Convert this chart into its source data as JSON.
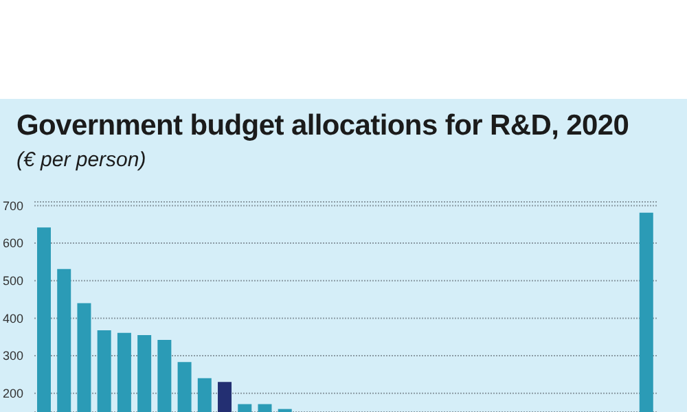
{
  "chart_data": {
    "type": "bar",
    "title": "Government budget allocations for R&D, 2020",
    "subtitle": "(€ per person)",
    "categories": [
      null,
      null,
      null,
      null,
      null,
      null,
      null,
      null,
      null,
      null,
      null,
      null,
      null,
      null,
      null,
      null,
      null,
      null,
      null,
      null,
      null,
      null,
      null,
      null,
      null,
      null,
      null,
      null,
      null,
      null,
      null
    ],
    "values": [
      642,
      531,
      440,
      368,
      361,
      355,
      342,
      283,
      240,
      230,
      171,
      171,
      158,
      null,
      null,
      null,
      null,
      null,
      null,
      null,
      null,
      null,
      null,
      null,
      null,
      null,
      null,
      null,
      null,
      null,
      681
    ],
    "colors": [
      "#2b9bb6",
      "#2b9bb6",
      "#2b9bb6",
      "#2b9bb6",
      "#2b9bb6",
      "#2b9bb6",
      "#2b9bb6",
      "#2b9bb6",
      "#2b9bb6",
      "#232f72",
      "#2b9bb6",
      "#2b9bb6",
      "#2b9bb6",
      "#2b9bb6",
      "#2b9bb6",
      "#2b9bb6",
      "#2b9bb6",
      "#2b9bb6",
      "#2b9bb6",
      "#2b9bb6",
      "#2b9bb6",
      "#2b9bb6",
      "#2b9bb6",
      "#2b9bb6",
      "#2b9bb6",
      "#2b9bb6",
      "#2b9bb6",
      "#2b9bb6",
      "#2b9bb6",
      "#2b9bb6",
      "#2b9bb6"
    ],
    "ylim": [
      150,
      710
    ],
    "yticks": [
      200,
      300,
      400,
      500,
      600,
      700
    ],
    "grid": "y",
    "tick_labels": "y"
  }
}
